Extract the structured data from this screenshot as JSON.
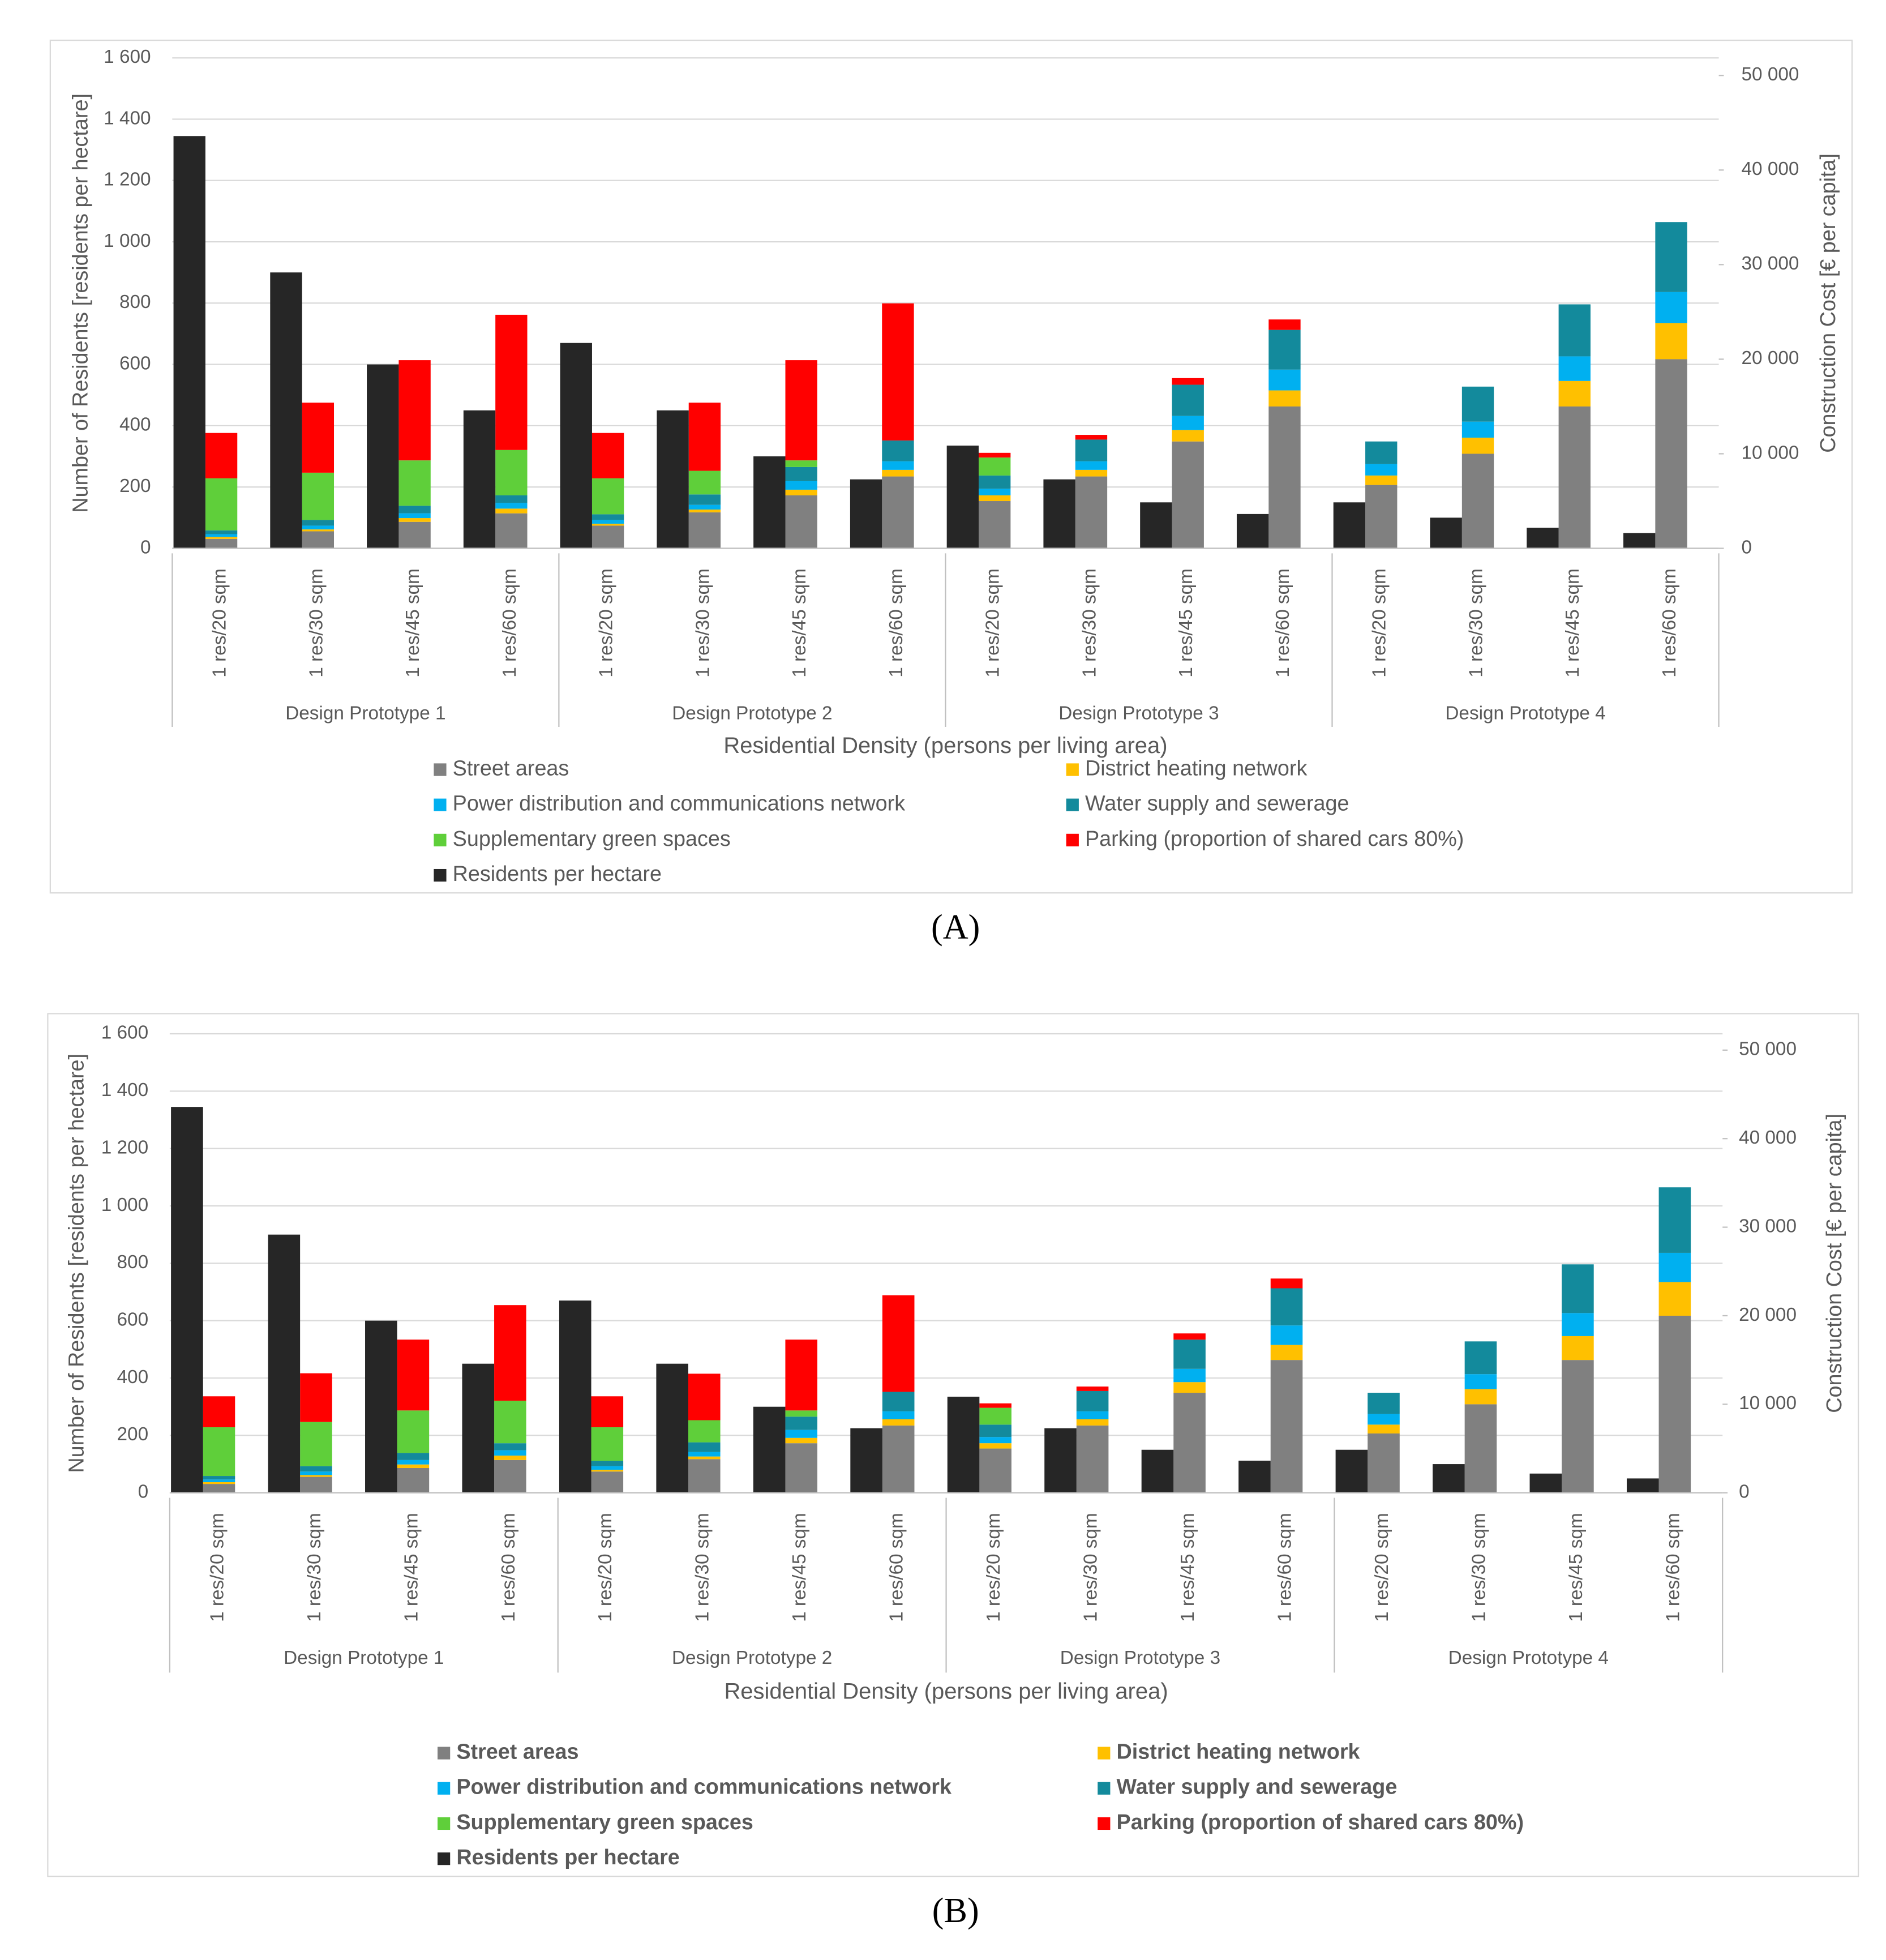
{
  "chart_data": [
    {
      "type": "bar",
      "label": "(A)",
      "ylabel": "Number of Residents [residents per hectare]",
      "y2label": "Construction Cost [€ per capita]",
      "xlabel": "Residential Density (persons per living area)",
      "groups": [
        "Design Prototype 1",
        "Design Prototype 2",
        "Design Prototype 3",
        "Design Prototype 4"
      ],
      "categories": [
        "1 res/20 sqm",
        "1 res/30 sqm",
        "1 res/45 sqm",
        "1 res/60 sqm",
        "1 res/20 sqm",
        "1 res/30 sqm",
        "1 res/45 sqm",
        "1 res/60 sqm",
        "1 res/20 sqm",
        "1 res/30 sqm",
        "1 res/45 sqm",
        "1 res/60 sqm",
        "1 res/20 sqm",
        "1 res/30 sqm",
        "1 res/45 sqm",
        "1 res/60 sqm"
      ],
      "series": [
        {
          "name": "Street areas",
          "color": "#808080",
          "axis": "y2",
          "values": [
            1000,
            1800,
            2800,
            3700,
            2400,
            3800,
            5600,
            7600,
            5000,
            7600,
            11300,
            15000,
            6700,
            10000,
            15000,
            20000
          ]
        },
        {
          "name": "District heating network",
          "color": "#ffc000",
          "axis": "y2",
          "values": [
            200,
            200,
            400,
            500,
            200,
            300,
            600,
            700,
            600,
            700,
            1200,
            1700,
            1000,
            1700,
            2700,
            3800
          ]
        },
        {
          "name": "Power distribution  and communications network",
          "color": "#00b0f0",
          "axis": "y2",
          "values": [
            300,
            400,
            500,
            600,
            400,
            500,
            900,
            900,
            700,
            900,
            1500,
            2200,
            1200,
            1700,
            2600,
            3300
          ]
        },
        {
          "name": "Water supply and sewerage",
          "color": "#138a9c",
          "axis": "y2",
          "values": [
            400,
            600,
            800,
            800,
            600,
            1100,
            1500,
            2200,
            1400,
            2300,
            3300,
            4200,
            2400,
            3700,
            5500,
            7400
          ]
        },
        {
          "name": "Supplementary green spaces",
          "color": "#5fcf3a",
          "axis": "y2",
          "values": [
            5500,
            5000,
            4800,
            4800,
            3800,
            2500,
            700,
            0,
            1900,
            0,
            0,
            0,
            0,
            0,
            0,
            0
          ]
        },
        {
          "name": "Parking (proportion of shared cars 80%)",
          "color": "#ff0000",
          "axis": "y2",
          "values": [
            4800,
            7400,
            10600,
            14300,
            4800,
            7200,
            10600,
            14500,
            500,
            500,
            700,
            1100,
            0,
            0,
            0,
            0
          ]
        },
        {
          "name": "Residents per hectare",
          "color": "#262626",
          "axis": "y",
          "values": [
            1345,
            900,
            600,
            450,
            670,
            450,
            300,
            225,
            335,
            225,
            150,
            112,
            150,
            100,
            67,
            50
          ]
        }
      ],
      "ylim": [
        0,
        1600
      ],
      "yticks": [
        0,
        200,
        400,
        600,
        800,
        {
          "value": 1000,
          "label": "1 000"
        },
        {
          "value": 1200,
          "label": "1 200"
        },
        {
          "value": 1400,
          "label": "1 400"
        },
        {
          "value": 1600,
          "label": "1 600"
        }
      ],
      "y2lim": [
        0,
        50000
      ],
      "y2ticks": [
        0,
        {
          "value": 10000,
          "label": "10 000"
        },
        {
          "value": 20000,
          "label": "20 000"
        },
        {
          "value": 30000,
          "label": "30 000"
        },
        {
          "value": 40000,
          "label": "40 000"
        },
        {
          "value": 50000,
          "label": "50 000"
        }
      ],
      "grid": true
    },
    {
      "type": "bar",
      "label": "(B)",
      "ylabel": "Number of Residents [residents per hectare]",
      "y2label": "Construction Cost [€ per capita]",
      "xlabel": "Residential Density (persons per living area)",
      "groups": [
        "Design Prototype 1",
        "Design Prototype 2",
        "Design Prototype 3",
        "Design Prototype 4"
      ],
      "categories": [
        "1 res/20 sqm",
        "1 res/30 sqm",
        "1 res/45 sqm",
        "1 res/60 sqm",
        "1 res/20 sqm",
        "1 res/30 sqm",
        "1 res/45 sqm",
        "1 res/60 sqm",
        "1 res/20 sqm",
        "1 res/30 sqm",
        "1 res/45 sqm",
        "1 res/60 sqm",
        "1 res/20 sqm",
        "1 res/30 sqm",
        "1 res/45 sqm",
        "1 res/60 sqm"
      ],
      "series": [
        {
          "name": "Street areas",
          "color": "#808080",
          "axis": "y2",
          "values": [
            1000,
            1800,
            2800,
            3700,
            2400,
            3800,
            5600,
            7600,
            5000,
            7600,
            11300,
            15000,
            6700,
            10000,
            15000,
            20000
          ]
        },
        {
          "name": "District heating network",
          "color": "#ffc000",
          "axis": "y2",
          "values": [
            200,
            200,
            400,
            500,
            200,
            300,
            600,
            700,
            600,
            700,
            1200,
            1700,
            1000,
            1700,
            2700,
            3800
          ]
        },
        {
          "name": "Power distribution  and communications network",
          "color": "#00b0f0",
          "axis": "y2",
          "values": [
            300,
            400,
            500,
            600,
            400,
            500,
            900,
            900,
            700,
            900,
            1500,
            2200,
            1200,
            1700,
            2600,
            3300
          ]
        },
        {
          "name": "Water supply and sewerage",
          "color": "#138a9c",
          "axis": "y2",
          "values": [
            400,
            600,
            800,
            800,
            600,
            1100,
            1500,
            2200,
            1400,
            2300,
            3300,
            4200,
            2400,
            3700,
            5500,
            7400
          ]
        },
        {
          "name": "Supplementary green spaces",
          "color": "#5fcf3a",
          "axis": "y2",
          "values": [
            5500,
            5000,
            4800,
            4800,
            3800,
            2500,
            700,
            0,
            1900,
            0,
            0,
            0,
            0,
            0,
            0,
            0
          ]
        },
        {
          "name": "Parking (proportion of shared cars 80%)",
          "color": "#ff0000",
          "axis": "y2",
          "values": [
            3500,
            5500,
            8000,
            10800,
            3500,
            5250,
            8000,
            10900,
            500,
            500,
            700,
            1100,
            0,
            0,
            0,
            0
          ]
        },
        {
          "name": "Residents per hectare",
          "color": "#262626",
          "axis": "y",
          "values": [
            1345,
            900,
            600,
            450,
            670,
            450,
            300,
            225,
            335,
            225,
            150,
            112,
            150,
            100,
            67,
            50
          ]
        }
      ],
      "ylim": [
        0,
        1600
      ],
      "yticks": [
        0,
        200,
        400,
        600,
        800,
        {
          "value": 1000,
          "label": "1 000"
        },
        {
          "value": 1200,
          "label": "1 200"
        },
        {
          "value": 1400,
          "label": "1 400"
        },
        {
          "value": 1600,
          "label": "1 600"
        }
      ],
      "y2lim": [
        0,
        50000
      ],
      "y2ticks": [
        0,
        {
          "value": 10000,
          "label": "10 000"
        },
        {
          "value": 20000,
          "label": "20 000"
        },
        {
          "value": 30000,
          "label": "30 000"
        },
        {
          "value": 40000,
          "label": "40 000"
        },
        {
          "value": 50000,
          "label": "50 000"
        }
      ],
      "grid": true
    }
  ]
}
